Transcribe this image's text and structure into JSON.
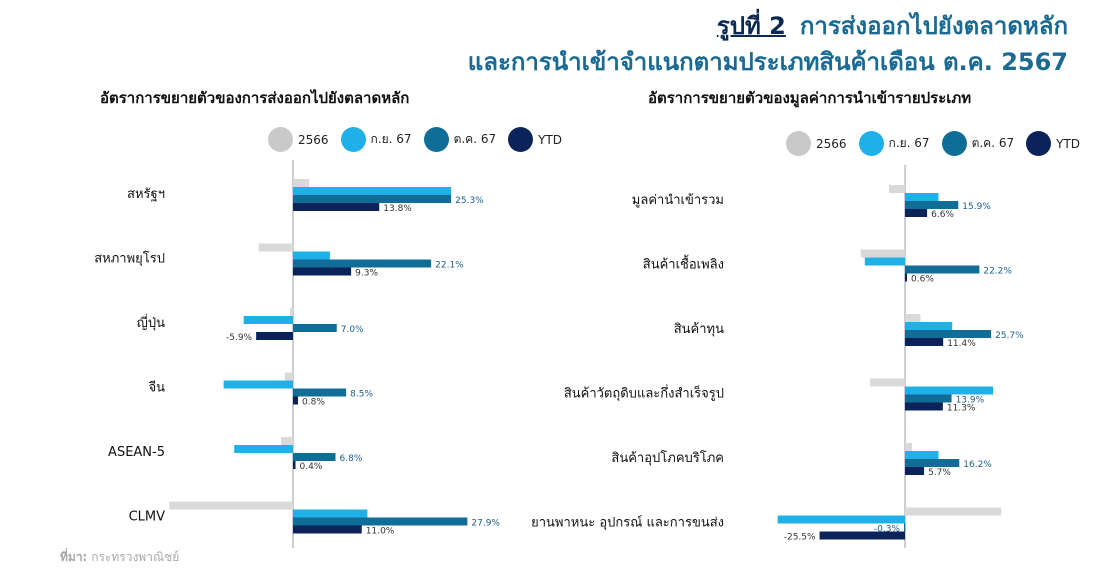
{
  "header": {
    "figure_label": "รูปที่ 2",
    "title_line1": "การส่งออกไปยังตลาดหลัก",
    "title_line2": "และการนำเข้าจำแนกตามประเภทสินค้าเดือน ต.ค. 2567"
  },
  "source": {
    "label": "ที่มา:",
    "text": "กระทรวงพาณิชย์"
  },
  "colors": {
    "2566": "#d9d9d9",
    "sep67": "#1eb0e6",
    "oct67": "#0f6d98",
    "ytd": "#0b2358",
    "axis": "#bdbdbd"
  },
  "legend": [
    "2566",
    "ก.ย. 67",
    "ต.ค. 67",
    "YTD"
  ],
  "chart_data": [
    {
      "type": "bar",
      "title": "อัตราการขยายตัวของการส่งออกไปยังตลาดหลัก",
      "categories": [
        "สหรัฐฯ",
        "สหภาพยุโรป",
        "ญี่ปุ่น",
        "จีน",
        "ASEAN-5",
        "CLMV"
      ],
      "series": [
        {
          "name": "2566",
          "values": [
            2.6,
            -5.5,
            -0.5,
            -1.3,
            -1.9,
            -19.8
          ]
        },
        {
          "name": "ก.ย. 67",
          "values": [
            25.3,
            5.9,
            -7.9,
            -11.1,
            -9.4,
            11.9
          ]
        },
        {
          "name": "ต.ค. 67",
          "values": [
            25.3,
            22.1,
            7.0,
            8.5,
            6.8,
            27.9
          ]
        },
        {
          "name": "YTD",
          "values": [
            13.8,
            9.3,
            -5.9,
            0.8,
            0.4,
            11.0
          ]
        }
      ],
      "labels": [
        {
          "series": "ต.ค. 67",
          "values": [
            "25.3%",
            "22.1%",
            "7.0%",
            "8.5%",
            "6.8%",
            "27.9%"
          ]
        },
        {
          "series": "YTD",
          "values": [
            "13.8%",
            "9.3%",
            "-5.9%",
            "0.8%",
            "0.4%",
            "11.0%"
          ]
        }
      ]
    },
    {
      "type": "bar",
      "title": "อัตราการขยายตัวของมูลค่าการนำเข้ารายประเภท",
      "categories": [
        "มูลค่านำเข้ารวม",
        "สินค้าเชื้อเพลิง",
        "สินค้าทุน",
        "สินค้าวัตถุดิบและกึ่งสำเร็จรูป",
        "สินค้าอุปโภคบริโภค",
        "ยานพาหนะ อุปกรณ์ และการขนส่ง"
      ],
      "series": [
        {
          "name": "2566",
          "values": [
            -4.8,
            -13.2,
            4.6,
            -10.4,
            2.1,
            28.7
          ]
        },
        {
          "name": "ก.ย. 67",
          "values": [
            10.0,
            -12.0,
            14.1,
            26.3,
            10.0,
            -38.0
          ]
        },
        {
          "name": "ต.ค. 67",
          "values": [
            15.9,
            22.2,
            25.7,
            13.9,
            16.2,
            -0.3
          ]
        },
        {
          "name": "YTD",
          "values": [
            6.6,
            0.6,
            11.4,
            11.3,
            5.7,
            -25.5
          ]
        }
      ],
      "labels": [
        {
          "series": "ต.ค. 67",
          "values": [
            "15.9%",
            "22.2%",
            "25.7%",
            "13.9%",
            "16.2%",
            "-0.3%"
          ]
        },
        {
          "series": "YTD",
          "values": [
            "6.6%",
            "0.6%",
            "11.4%",
            "11.3%",
            "5.7%",
            "-25.5%"
          ]
        }
      ]
    }
  ]
}
